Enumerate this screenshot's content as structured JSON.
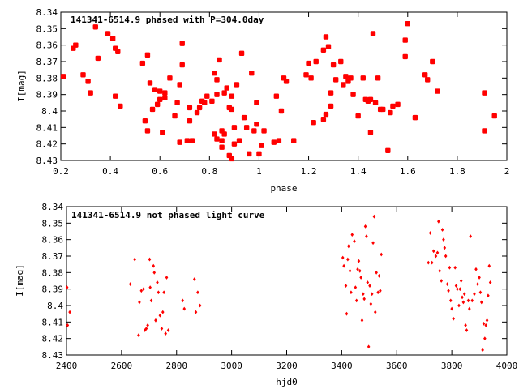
{
  "chart_data": [
    {
      "type": "scatter",
      "title": "141341-6514.9 phased with P=304.0day",
      "xlabel": "phase",
      "ylabel": "I[mag]",
      "xlim": [
        0.2,
        2.0
      ],
      "ylim": [
        8.43,
        8.34
      ],
      "y_inverted": true,
      "grid": false,
      "legend": "none",
      "x_ticks": [
        "0.2",
        "0.4",
        "0.6",
        "0.8",
        "1",
        "1.2",
        "1.4",
        "1.6",
        "1.8",
        "2"
      ],
      "y_ticks": [
        "8.34",
        "8.35",
        "8.36",
        "8.37",
        "8.38",
        "8.39",
        "8.4",
        "8.41",
        "8.42",
        "8.43"
      ],
      "marker_color": "#ff0000",
      "series": [
        {
          "points": [
            [
              0.21,
              8.379
            ],
            [
              0.25,
              8.362
            ],
            [
              0.26,
              8.36
            ],
            [
              0.29,
              8.378
            ],
            [
              0.31,
              8.382
            ],
            [
              0.32,
              8.389
            ],
            [
              0.34,
              8.349
            ],
            [
              0.35,
              8.368
            ],
            [
              0.39,
              8.353
            ],
            [
              0.41,
              8.356
            ],
            [
              0.42,
              8.362
            ],
            [
              0.42,
              8.391
            ],
            [
              0.43,
              8.364
            ],
            [
              0.44,
              8.397
            ],
            [
              0.53,
              8.371
            ],
            [
              0.54,
              8.406
            ],
            [
              0.55,
              8.366
            ],
            [
              0.55,
              8.412
            ],
            [
              0.56,
              8.383
            ],
            [
              0.57,
              8.399
            ],
            [
              0.58,
              8.387
            ],
            [
              0.59,
              8.396
            ],
            [
              0.6,
              8.393
            ],
            [
              0.6,
              8.388
            ],
            [
              0.61,
              8.413
            ],
            [
              0.62,
              8.392
            ],
            [
              0.62,
              8.389
            ],
            [
              0.64,
              8.38
            ],
            [
              0.66,
              8.403
            ],
            [
              0.67,
              8.395
            ],
            [
              0.68,
              8.419
            ],
            [
              0.68,
              8.384
            ],
            [
              0.69,
              8.359
            ],
            [
              0.69,
              8.372
            ],
            [
              0.71,
              8.418
            ],
            [
              0.72,
              8.406
            ],
            [
              0.72,
              8.398
            ],
            [
              0.73,
              8.418
            ],
            [
              0.75,
              8.401
            ],
            [
              0.76,
              8.398
            ],
            [
              0.77,
              8.394
            ],
            [
              0.78,
              8.395
            ],
            [
              0.79,
              8.391
            ],
            [
              0.81,
              8.394
            ],
            [
              0.82,
              8.414
            ],
            [
              0.82,
              8.377
            ],
            [
              0.83,
              8.381
            ],
            [
              0.83,
              8.39
            ],
            [
              0.83,
              8.417
            ],
            [
              0.84,
              8.369
            ],
            [
              0.85,
              8.418
            ],
            [
              0.85,
              8.422
            ],
            [
              0.85,
              8.412
            ],
            [
              0.86,
              8.414
            ],
            [
              0.86,
              8.389
            ],
            [
              0.87,
              8.386
            ],
            [
              0.88,
              8.398
            ],
            [
              0.88,
              8.427
            ],
            [
              0.89,
              8.391
            ],
            [
              0.89,
              8.399
            ],
            [
              0.89,
              8.429
            ],
            [
              0.9,
              8.42
            ],
            [
              0.9,
              8.41
            ],
            [
              0.91,
              8.384
            ],
            [
              0.92,
              8.418
            ],
            [
              0.93,
              8.365
            ],
            [
              0.94,
              8.404
            ],
            [
              0.95,
              8.41
            ],
            [
              0.96,
              8.426
            ],
            [
              0.97,
              8.377
            ],
            [
              0.98,
              8.412
            ],
            [
              0.99,
              8.408
            ],
            [
              0.99,
              8.395
            ],
            [
              1.0,
              8.426
            ],
            [
              1.01,
              8.421
            ],
            [
              1.02,
              8.412
            ],
            [
              1.06,
              8.419
            ],
            [
              1.07,
              8.391
            ],
            [
              1.08,
              8.418
            ],
            [
              1.09,
              8.4
            ],
            [
              1.1,
              8.38
            ],
            [
              1.11,
              8.382
            ],
            [
              1.14,
              8.418
            ],
            [
              1.19,
              8.378
            ],
            [
              1.2,
              8.371
            ],
            [
              1.21,
              8.38
            ],
            [
              1.22,
              8.407
            ],
            [
              1.23,
              8.37
            ],
            [
              1.26,
              8.363
            ],
            [
              1.26,
              8.405
            ],
            [
              1.27,
              8.355
            ],
            [
              1.27,
              8.402
            ],
            [
              1.28,
              8.361
            ],
            [
              1.29,
              8.397
            ],
            [
              1.29,
              8.389
            ],
            [
              1.3,
              8.372
            ],
            [
              1.31,
              8.381
            ],
            [
              1.33,
              8.37
            ],
            [
              1.34,
              8.384
            ],
            [
              1.35,
              8.379
            ],
            [
              1.36,
              8.382
            ],
            [
              1.37,
              8.38
            ],
            [
              1.38,
              8.39
            ],
            [
              1.4,
              8.403
            ],
            [
              1.42,
              8.38
            ],
            [
              1.43,
              8.393
            ],
            [
              1.44,
              8.394
            ],
            [
              1.45,
              8.413
            ],
            [
              1.45,
              8.393
            ],
            [
              1.46,
              8.353
            ],
            [
              1.47,
              8.395
            ],
            [
              1.48,
              8.38
            ],
            [
              1.49,
              8.399
            ],
            [
              1.5,
              8.399
            ],
            [
              1.52,
              8.424
            ],
            [
              1.53,
              8.401
            ],
            [
              1.54,
              8.397
            ],
            [
              1.56,
              8.396
            ],
            [
              1.59,
              8.367
            ],
            [
              1.59,
              8.357
            ],
            [
              1.6,
              8.347
            ],
            [
              1.63,
              8.404
            ],
            [
              1.67,
              8.378
            ],
            [
              1.68,
              8.381
            ],
            [
              1.7,
              8.37
            ],
            [
              1.72,
              8.388
            ],
            [
              1.91,
              8.389
            ],
            [
              1.91,
              8.412
            ],
            [
              1.95,
              8.403
            ]
          ]
        }
      ]
    },
    {
      "type": "scatter",
      "title": "141341-6514.9 not phased light curve",
      "xlabel": "hjd0",
      "ylabel": "I[mag]",
      "xlim": [
        2400,
        4000
      ],
      "ylim": [
        8.43,
        8.34
      ],
      "y_inverted": true,
      "grid": false,
      "legend": "none",
      "x_ticks": [
        "2400",
        "2600",
        "2800",
        "3000",
        "3200",
        "3400",
        "3600",
        "3800",
        "4000"
      ],
      "y_ticks": [
        "8.34",
        "8.35",
        "8.36",
        "8.37",
        "8.38",
        "8.39",
        "8.4",
        "8.41",
        "8.42",
        "8.43"
      ],
      "marker_color": "#ff0000",
      "series": [
        {
          "points": [
            [
              2402,
              8.389
            ],
            [
              2404,
              8.412
            ],
            [
              2412,
              8.404
            ],
            [
              2632,
              8.387
            ],
            [
              2648,
              8.372
            ],
            [
              2662,
              8.418
            ],
            [
              2665,
              8.398
            ],
            [
              2672,
              8.391
            ],
            [
              2680,
              8.39
            ],
            [
              2685,
              8.415
            ],
            [
              2690,
              8.414
            ],
            [
              2695,
              8.412
            ],
            [
              2702,
              8.372
            ],
            [
              2704,
              8.389
            ],
            [
              2708,
              8.397
            ],
            [
              2716,
              8.376
            ],
            [
              2719,
              8.38
            ],
            [
              2724,
              8.409
            ],
            [
              2730,
              8.386
            ],
            [
              2734,
              8.392
            ],
            [
              2740,
              8.406
            ],
            [
              2746,
              8.414
            ],
            [
              2750,
              8.404
            ],
            [
              2754,
              8.392
            ],
            [
              2760,
              8.417
            ],
            [
              2764,
              8.383
            ],
            [
              2770,
              8.415
            ],
            [
              2822,
              8.397
            ],
            [
              2828,
              8.402
            ],
            [
              2865,
              8.384
            ],
            [
              2870,
              8.404
            ],
            [
              2877,
              8.392
            ],
            [
              2885,
              8.4
            ],
            [
              3404,
              8.371
            ],
            [
              3408,
              8.376
            ],
            [
              3415,
              8.388
            ],
            [
              3418,
              8.405
            ],
            [
              3422,
              8.372
            ],
            [
              3425,
              8.364
            ],
            [
              3430,
              8.379
            ],
            [
              3434,
              8.392
            ],
            [
              3438,
              8.357
            ],
            [
              3446,
              8.361
            ],
            [
              3450,
              8.389
            ],
            [
              3454,
              8.397
            ],
            [
              3458,
              8.378
            ],
            [
              3462,
              8.373
            ],
            [
              3466,
              8.379
            ],
            [
              3470,
              8.383
            ],
            [
              3474,
              8.409
            ],
            [
              3478,
              8.393
            ],
            [
              3482,
              8.396
            ],
            [
              3486,
              8.352
            ],
            [
              3490,
              8.358
            ],
            [
              3494,
              8.386
            ],
            [
              3498,
              8.425
            ],
            [
              3502,
              8.388
            ],
            [
              3506,
              8.399
            ],
            [
              3510,
              8.393
            ],
            [
              3514,
              8.362
            ],
            [
              3518,
              8.346
            ],
            [
              3522,
              8.404
            ],
            [
              3526,
              8.38
            ],
            [
              3532,
              8.392
            ],
            [
              3536,
              8.382
            ],
            [
              3540,
              8.391
            ],
            [
              3544,
              8.369
            ],
            [
              3715,
              8.374
            ],
            [
              3722,
              8.356
            ],
            [
              3728,
              8.374
            ],
            [
              3734,
              8.367
            ],
            [
              3742,
              8.37
            ],
            [
              3748,
              8.368
            ],
            [
              3752,
              8.349
            ],
            [
              3756,
              8.379
            ],
            [
              3762,
              8.385
            ],
            [
              3766,
              8.354
            ],
            [
              3770,
              8.36
            ],
            [
              3774,
              8.365
            ],
            [
              3778,
              8.37
            ],
            [
              3784,
              8.387
            ],
            [
              3788,
              8.391
            ],
            [
              3792,
              8.377
            ],
            [
              3796,
              8.397
            ],
            [
              3800,
              8.402
            ],
            [
              3806,
              8.408
            ],
            [
              3812,
              8.377
            ],
            [
              3816,
              8.388
            ],
            [
              3820,
              8.39
            ],
            [
              3826,
              8.4
            ],
            [
              3830,
              8.39
            ],
            [
              3834,
              8.385
            ],
            [
              3838,
              8.395
            ],
            [
              3842,
              8.398
            ],
            [
              3846,
              8.393
            ],
            [
              3850,
              8.412
            ],
            [
              3854,
              8.415
            ],
            [
              3860,
              8.397
            ],
            [
              3864,
              8.402
            ],
            [
              3868,
              8.358
            ],
            [
              3874,
              8.397
            ],
            [
              3882,
              8.393
            ],
            [
              3888,
              8.378
            ],
            [
              3894,
              8.387
            ],
            [
              3900,
              8.383
            ],
            [
              3904,
              8.392
            ],
            [
              3908,
              8.398
            ],
            [
              3912,
              8.427
            ],
            [
              3916,
              8.411
            ],
            [
              3920,
              8.42
            ],
            [
              3924,
              8.412
            ],
            [
              3928,
              8.409
            ],
            [
              3932,
              8.394
            ],
            [
              3936,
              8.376
            ],
            [
              3940,
              8.386
            ]
          ]
        }
      ]
    }
  ]
}
